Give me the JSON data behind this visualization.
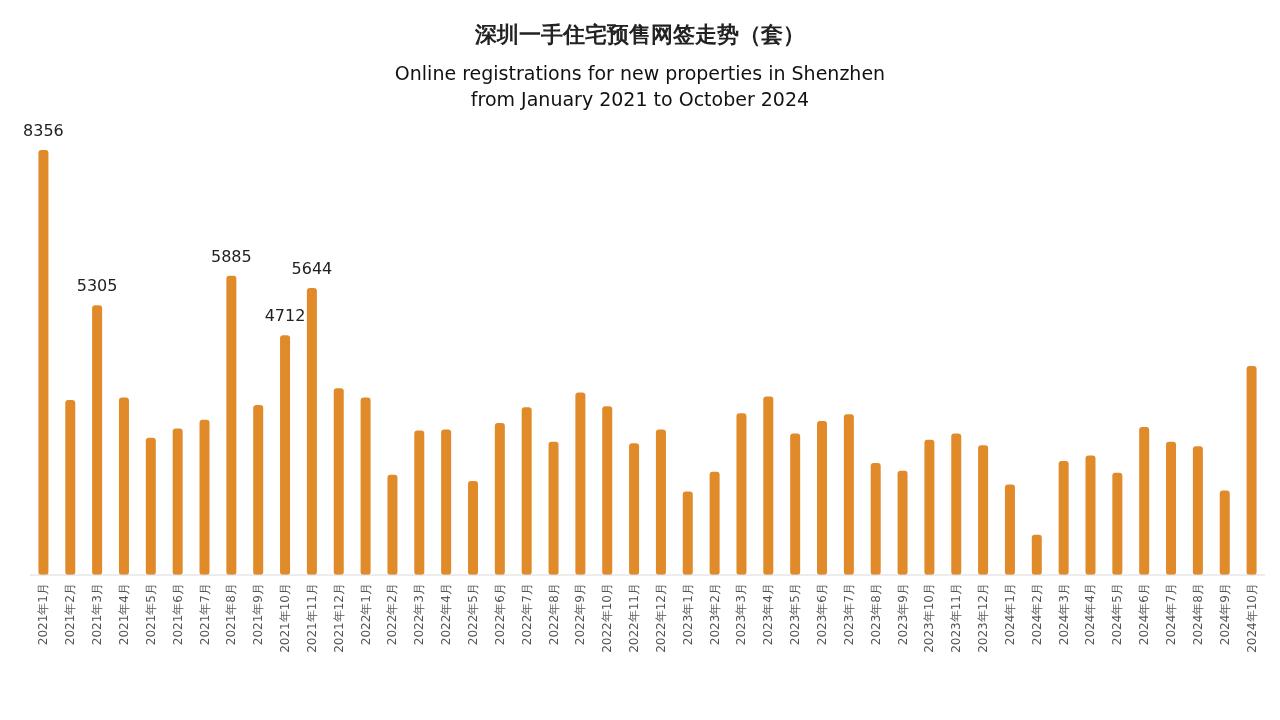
{
  "chart_data": {
    "type": "bar",
    "title": "深圳一手住宅预售网签走势（套）",
    "subtitle": "Online registrations for new properties in Shenzhen\nfrom January 2021 to October 2024",
    "color": "#e08a2a",
    "categories": [
      "2021年1月",
      "2021年2月",
      "2021年3月",
      "2021年4月",
      "2021年5月",
      "2021年6月",
      "2021年7月",
      "2021年8月",
      "2021年9月",
      "2021年10月",
      "2021年11月",
      "2021年12月",
      "2022年1月",
      "2022年2月",
      "2022年3月",
      "2022年4月",
      "2022年5月",
      "2022年6月",
      "2022年7月",
      "2022年8月",
      "2022年9月",
      "2022年10月",
      "2022年11月",
      "2022年12月",
      "2023年1月",
      "2023年2月",
      "2023年3月",
      "2023年4月",
      "2023年5月",
      "2023年6月",
      "2023年7月",
      "2023年8月",
      "2023年9月",
      "2023年10月",
      "2023年11月",
      "2023年12月",
      "2024年1月",
      "2024年2月",
      "2024年3月",
      "2024年4月",
      "2024年5月",
      "2024年6月",
      "2024年7月",
      "2024年8月",
      "2024年9月",
      "2024年10月"
    ],
    "values": [
      8356,
      3440,
      5305,
      3490,
      2700,
      2880,
      3050,
      5885,
      3340,
      4712,
      5644,
      3670,
      3490,
      1970,
      2840,
      2860,
      1850,
      2990,
      3300,
      2620,
      3590,
      3320,
      2590,
      2860,
      1640,
      2030,
      3180,
      3510,
      2780,
      3030,
      3160,
      2200,
      2050,
      2660,
      2780,
      2550,
      1780,
      790,
      2240,
      2350,
      2010,
      2910,
      2620,
      2530,
      1660,
      4110
    ],
    "value_labels": [
      "8356",
      null,
      "5305",
      null,
      null,
      null,
      null,
      "5885",
      null,
      "4712",
      "5644",
      null,
      null,
      null,
      null,
      null,
      null,
      null,
      null,
      null,
      null,
      null,
      null,
      null,
      null,
      null,
      null,
      null,
      null,
      null,
      null,
      null,
      null,
      null,
      null,
      null,
      null,
      null,
      null,
      null,
      null,
      null,
      null,
      null,
      null,
      null
    ]
  }
}
